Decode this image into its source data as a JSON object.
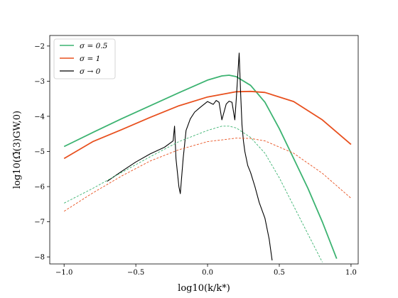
{
  "chart_data": {
    "type": "line",
    "xlabel": "log10(k/k*)",
    "ylabel": "log10(Ω̄(3)GW,0)",
    "xlim": [
      -1.1,
      1.05
    ],
    "ylim": [
      -8.2,
      -1.7
    ],
    "xticks": [
      -1.0,
      -0.5,
      0.0,
      0.5,
      1.0
    ],
    "xtick_labels": [
      "−1.0",
      "−0.5",
      "0.0",
      "0.5",
      "1.0"
    ],
    "yticks": [
      -8,
      -7,
      -6,
      -5,
      -4,
      -3,
      -2
    ],
    "ytick_labels": [
      "−8",
      "−7",
      "−6",
      "−5",
      "−4",
      "−3",
      "−2"
    ],
    "grid": false,
    "legend_position": "top-left",
    "series": [
      {
        "name": "σ = 0.5",
        "legend": "σ = 0.5",
        "color": "#3cb371",
        "style": "solid",
        "x": [
          -1.0,
          -0.8,
          -0.6,
          -0.4,
          -0.2,
          0.0,
          0.1,
          0.15,
          0.2,
          0.3,
          0.4,
          0.5,
          0.6,
          0.7,
          0.8,
          0.9
        ],
        "y": [
          -4.86,
          -4.46,
          -4.07,
          -3.7,
          -3.33,
          -2.97,
          -2.85,
          -2.83,
          -2.87,
          -3.12,
          -3.6,
          -4.35,
          -5.2,
          -6.05,
          -7.0,
          -8.05
        ]
      },
      {
        "name": "σ = 1",
        "legend": "σ = 1",
        "color": "#e8501e",
        "style": "solid",
        "x": [
          -1.0,
          -0.8,
          -0.6,
          -0.4,
          -0.2,
          0.0,
          0.2,
          0.3,
          0.4,
          0.6,
          0.8,
          1.0
        ],
        "y": [
          -5.2,
          -4.72,
          -4.38,
          -4.03,
          -3.7,
          -3.45,
          -3.3,
          -3.29,
          -3.32,
          -3.58,
          -4.1,
          -4.8
        ]
      },
      {
        "name": "σ → 0",
        "legend": "σ → 0",
        "color": "#000000",
        "style": "solid",
        "x": [
          -0.7,
          -0.6,
          -0.5,
          -0.4,
          -0.3,
          -0.24,
          -0.23,
          -0.22,
          -0.2,
          -0.19,
          -0.17,
          -0.15,
          -0.12,
          -0.09,
          -0.05,
          0.0,
          0.04,
          0.06,
          0.08,
          0.1,
          0.13,
          0.15,
          0.17,
          0.19,
          0.2,
          0.22,
          0.23,
          0.24,
          0.25,
          0.26,
          0.28,
          0.3,
          0.33,
          0.36,
          0.4,
          0.43,
          0.45
        ],
        "y": [
          -5.85,
          -5.57,
          -5.3,
          -5.07,
          -4.88,
          -4.7,
          -4.28,
          -5.2,
          -6.0,
          -6.2,
          -5.2,
          -4.4,
          -4.07,
          -3.88,
          -3.74,
          -3.58,
          -3.66,
          -3.55,
          -3.6,
          -4.1,
          -3.65,
          -3.57,
          -3.6,
          -4.1,
          -3.52,
          -2.2,
          -3.3,
          -4.25,
          -4.7,
          -5.0,
          -5.4,
          -5.6,
          -6.0,
          -6.45,
          -6.9,
          -7.5,
          -8.1
        ]
      },
      {
        "name": "",
        "color": "#3cb371",
        "style": "dashed",
        "x": [
          -1.0,
          -0.8,
          -0.6,
          -0.4,
          -0.2,
          0.0,
          0.1,
          0.15,
          0.2,
          0.3,
          0.4,
          0.5,
          0.6,
          0.7,
          0.8
        ],
        "y": [
          -6.47,
          -6.05,
          -5.6,
          -5.15,
          -4.72,
          -4.4,
          -4.28,
          -4.28,
          -4.33,
          -4.6,
          -5.05,
          -5.75,
          -6.55,
          -7.35,
          -8.15
        ]
      },
      {
        "name": "",
        "color": "#e8501e",
        "style": "dashed",
        "x": [
          -1.0,
          -0.8,
          -0.6,
          -0.4,
          -0.2,
          0.0,
          0.2,
          0.3,
          0.4,
          0.6,
          0.8,
          1.0
        ],
        "y": [
          -6.7,
          -6.18,
          -5.7,
          -5.27,
          -4.95,
          -4.72,
          -4.62,
          -4.63,
          -4.7,
          -5.05,
          -5.62,
          -6.33
        ]
      }
    ]
  }
}
